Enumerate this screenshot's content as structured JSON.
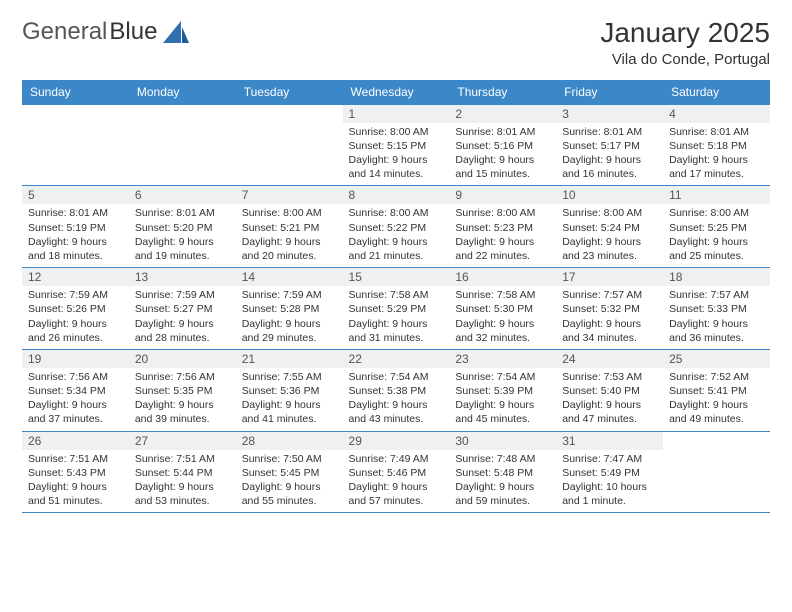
{
  "brand": {
    "part1": "General",
    "part2": "Blue"
  },
  "title": "January 2025",
  "location": "Vila do Conde, Portugal",
  "colors": {
    "header_bg": "#3b87c8",
    "header_text": "#ffffff",
    "daynum_bg": "#eef0f2",
    "border": "#3b87c8",
    "text": "#333333",
    "logo_accent": "#2f6fae"
  },
  "typography": {
    "title_fontsize": 28,
    "location_fontsize": 15,
    "dayhead_fontsize": 12,
    "daynum_fontsize": 12,
    "info_fontsize": 10.5,
    "logo_fontsize": 24
  },
  "day_headers": [
    "Sunday",
    "Monday",
    "Tuesday",
    "Wednesday",
    "Thursday",
    "Friday",
    "Saturday"
  ],
  "weeks": [
    [
      {
        "empty": true
      },
      {
        "empty": true
      },
      {
        "empty": true
      },
      {
        "day": "1",
        "sunrise": "Sunrise: 8:00 AM",
        "sunset": "Sunset: 5:15 PM",
        "daylight1": "Daylight: 9 hours",
        "daylight2": "and 14 minutes."
      },
      {
        "day": "2",
        "sunrise": "Sunrise: 8:01 AM",
        "sunset": "Sunset: 5:16 PM",
        "daylight1": "Daylight: 9 hours",
        "daylight2": "and 15 minutes."
      },
      {
        "day": "3",
        "sunrise": "Sunrise: 8:01 AM",
        "sunset": "Sunset: 5:17 PM",
        "daylight1": "Daylight: 9 hours",
        "daylight2": "and 16 minutes."
      },
      {
        "day": "4",
        "sunrise": "Sunrise: 8:01 AM",
        "sunset": "Sunset: 5:18 PM",
        "daylight1": "Daylight: 9 hours",
        "daylight2": "and 17 minutes."
      }
    ],
    [
      {
        "day": "5",
        "sunrise": "Sunrise: 8:01 AM",
        "sunset": "Sunset: 5:19 PM",
        "daylight1": "Daylight: 9 hours",
        "daylight2": "and 18 minutes."
      },
      {
        "day": "6",
        "sunrise": "Sunrise: 8:01 AM",
        "sunset": "Sunset: 5:20 PM",
        "daylight1": "Daylight: 9 hours",
        "daylight2": "and 19 minutes."
      },
      {
        "day": "7",
        "sunrise": "Sunrise: 8:00 AM",
        "sunset": "Sunset: 5:21 PM",
        "daylight1": "Daylight: 9 hours",
        "daylight2": "and 20 minutes."
      },
      {
        "day": "8",
        "sunrise": "Sunrise: 8:00 AM",
        "sunset": "Sunset: 5:22 PM",
        "daylight1": "Daylight: 9 hours",
        "daylight2": "and 21 minutes."
      },
      {
        "day": "9",
        "sunrise": "Sunrise: 8:00 AM",
        "sunset": "Sunset: 5:23 PM",
        "daylight1": "Daylight: 9 hours",
        "daylight2": "and 22 minutes."
      },
      {
        "day": "10",
        "sunrise": "Sunrise: 8:00 AM",
        "sunset": "Sunset: 5:24 PM",
        "daylight1": "Daylight: 9 hours",
        "daylight2": "and 23 minutes."
      },
      {
        "day": "11",
        "sunrise": "Sunrise: 8:00 AM",
        "sunset": "Sunset: 5:25 PM",
        "daylight1": "Daylight: 9 hours",
        "daylight2": "and 25 minutes."
      }
    ],
    [
      {
        "day": "12",
        "sunrise": "Sunrise: 7:59 AM",
        "sunset": "Sunset: 5:26 PM",
        "daylight1": "Daylight: 9 hours",
        "daylight2": "and 26 minutes."
      },
      {
        "day": "13",
        "sunrise": "Sunrise: 7:59 AM",
        "sunset": "Sunset: 5:27 PM",
        "daylight1": "Daylight: 9 hours",
        "daylight2": "and 28 minutes."
      },
      {
        "day": "14",
        "sunrise": "Sunrise: 7:59 AM",
        "sunset": "Sunset: 5:28 PM",
        "daylight1": "Daylight: 9 hours",
        "daylight2": "and 29 minutes."
      },
      {
        "day": "15",
        "sunrise": "Sunrise: 7:58 AM",
        "sunset": "Sunset: 5:29 PM",
        "daylight1": "Daylight: 9 hours",
        "daylight2": "and 31 minutes."
      },
      {
        "day": "16",
        "sunrise": "Sunrise: 7:58 AM",
        "sunset": "Sunset: 5:30 PM",
        "daylight1": "Daylight: 9 hours",
        "daylight2": "and 32 minutes."
      },
      {
        "day": "17",
        "sunrise": "Sunrise: 7:57 AM",
        "sunset": "Sunset: 5:32 PM",
        "daylight1": "Daylight: 9 hours",
        "daylight2": "and 34 minutes."
      },
      {
        "day": "18",
        "sunrise": "Sunrise: 7:57 AM",
        "sunset": "Sunset: 5:33 PM",
        "daylight1": "Daylight: 9 hours",
        "daylight2": "and 36 minutes."
      }
    ],
    [
      {
        "day": "19",
        "sunrise": "Sunrise: 7:56 AM",
        "sunset": "Sunset: 5:34 PM",
        "daylight1": "Daylight: 9 hours",
        "daylight2": "and 37 minutes."
      },
      {
        "day": "20",
        "sunrise": "Sunrise: 7:56 AM",
        "sunset": "Sunset: 5:35 PM",
        "daylight1": "Daylight: 9 hours",
        "daylight2": "and 39 minutes."
      },
      {
        "day": "21",
        "sunrise": "Sunrise: 7:55 AM",
        "sunset": "Sunset: 5:36 PM",
        "daylight1": "Daylight: 9 hours",
        "daylight2": "and 41 minutes."
      },
      {
        "day": "22",
        "sunrise": "Sunrise: 7:54 AM",
        "sunset": "Sunset: 5:38 PM",
        "daylight1": "Daylight: 9 hours",
        "daylight2": "and 43 minutes."
      },
      {
        "day": "23",
        "sunrise": "Sunrise: 7:54 AM",
        "sunset": "Sunset: 5:39 PM",
        "daylight1": "Daylight: 9 hours",
        "daylight2": "and 45 minutes."
      },
      {
        "day": "24",
        "sunrise": "Sunrise: 7:53 AM",
        "sunset": "Sunset: 5:40 PM",
        "daylight1": "Daylight: 9 hours",
        "daylight2": "and 47 minutes."
      },
      {
        "day": "25",
        "sunrise": "Sunrise: 7:52 AM",
        "sunset": "Sunset: 5:41 PM",
        "daylight1": "Daylight: 9 hours",
        "daylight2": "and 49 minutes."
      }
    ],
    [
      {
        "day": "26",
        "sunrise": "Sunrise: 7:51 AM",
        "sunset": "Sunset: 5:43 PM",
        "daylight1": "Daylight: 9 hours",
        "daylight2": "and 51 minutes."
      },
      {
        "day": "27",
        "sunrise": "Sunrise: 7:51 AM",
        "sunset": "Sunset: 5:44 PM",
        "daylight1": "Daylight: 9 hours",
        "daylight2": "and 53 minutes."
      },
      {
        "day": "28",
        "sunrise": "Sunrise: 7:50 AM",
        "sunset": "Sunset: 5:45 PM",
        "daylight1": "Daylight: 9 hours",
        "daylight2": "and 55 minutes."
      },
      {
        "day": "29",
        "sunrise": "Sunrise: 7:49 AM",
        "sunset": "Sunset: 5:46 PM",
        "daylight1": "Daylight: 9 hours",
        "daylight2": "and 57 minutes."
      },
      {
        "day": "30",
        "sunrise": "Sunrise: 7:48 AM",
        "sunset": "Sunset: 5:48 PM",
        "daylight1": "Daylight: 9 hours",
        "daylight2": "and 59 minutes."
      },
      {
        "day": "31",
        "sunrise": "Sunrise: 7:47 AM",
        "sunset": "Sunset: 5:49 PM",
        "daylight1": "Daylight: 10 hours",
        "daylight2": "and 1 minute."
      },
      {
        "empty": true
      }
    ]
  ]
}
